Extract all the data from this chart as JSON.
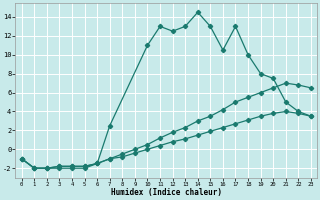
{
  "xlabel": "Humidex (Indice chaleur)",
  "background_color": "#c8eaea",
  "grid_color": "#ffffff",
  "line_color": "#1a7a6e",
  "xlim": [
    -0.5,
    23.5
  ],
  "ylim": [
    -3,
    15.5
  ],
  "yticks": [
    -2,
    0,
    2,
    4,
    6,
    8,
    10,
    12,
    14
  ],
  "xticks": [
    0,
    1,
    2,
    3,
    4,
    5,
    6,
    7,
    8,
    9,
    10,
    11,
    12,
    13,
    14,
    15,
    16,
    17,
    18,
    19,
    20,
    21,
    22,
    23
  ],
  "line1_x": [
    0,
    1,
    2,
    3,
    4,
    5,
    6,
    7,
    10,
    11,
    12,
    13,
    14,
    15,
    16,
    17,
    18,
    19,
    20,
    21,
    22,
    23
  ],
  "line1_y": [
    -1,
    -2,
    -2,
    -2,
    -2,
    -2,
    -1.5,
    2.5,
    11,
    13,
    12.5,
    13,
    14.5,
    13,
    10.5,
    13,
    10,
    8,
    7.5,
    5,
    4,
    3.5
  ],
  "line2_x": [
    0,
    1,
    2,
    3,
    4,
    5,
    6,
    7,
    8,
    9,
    10,
    11,
    12,
    13,
    14,
    15,
    16,
    17,
    18,
    19,
    20,
    21,
    22,
    23
  ],
  "line2_y": [
    -1,
    -2,
    -2,
    -1.8,
    -1.8,
    -1.8,
    -1.5,
    -1.0,
    -0.5,
    0,
    0.5,
    1.2,
    1.8,
    2.3,
    3.0,
    3.5,
    4.2,
    5.0,
    5.5,
    6.0,
    6.5,
    7.0,
    6.8,
    6.5
  ],
  "line3_x": [
    0,
    1,
    2,
    3,
    4,
    5,
    6,
    7,
    8,
    9,
    10,
    11,
    12,
    13,
    14,
    15,
    16,
    17,
    18,
    19,
    20,
    21,
    22,
    23
  ],
  "line3_y": [
    -1,
    -2,
    -2,
    -1.8,
    -1.8,
    -1.8,
    -1.5,
    -1.0,
    -0.8,
    -0.4,
    0.0,
    0.4,
    0.8,
    1.1,
    1.5,
    1.9,
    2.3,
    2.7,
    3.1,
    3.5,
    3.8,
    4.0,
    3.8,
    3.5
  ]
}
